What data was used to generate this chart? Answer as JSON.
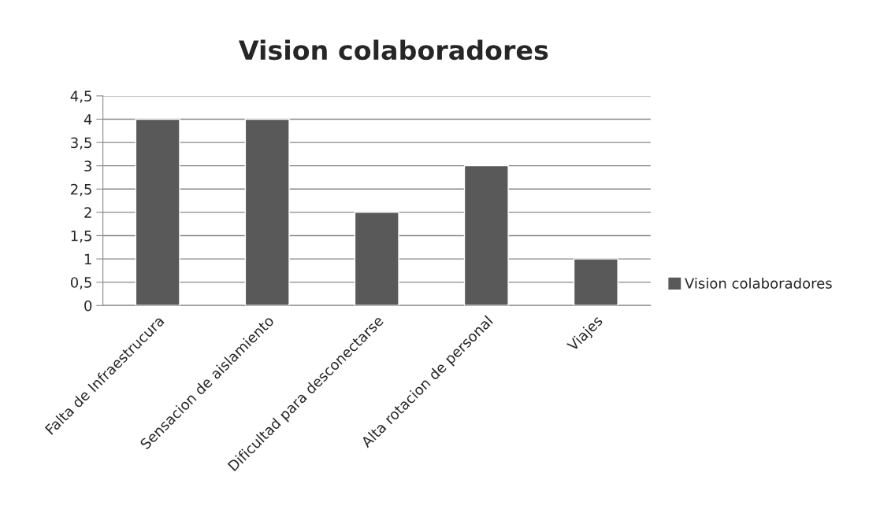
{
  "chart_data": {
    "type": "bar",
    "title": "Vision colaboradores",
    "categories": [
      "Falta de Infraestrucura",
      "Sensacion de aislamiento",
      "Dificultad para desconectarse",
      "Alta rotacion de personal",
      "Viajes"
    ],
    "series": [
      {
        "name": "Vision colaboradores",
        "color": "#595959",
        "values": [
          4,
          4,
          2,
          3,
          1
        ]
      }
    ],
    "ylim": [
      0,
      4.5
    ],
    "yticks": [
      0,
      {
        "value": 0.5,
        "label": "0,5"
      },
      1,
      {
        "value": 1.5,
        "label": "1,5"
      },
      2,
      {
        "value": 2.5,
        "label": "2,5"
      },
      3,
      {
        "value": 3.5,
        "label": "3,5"
      },
      4,
      {
        "value": 4.5,
        "label": "4,5"
      }
    ],
    "grid": "y",
    "legend": "right"
  }
}
